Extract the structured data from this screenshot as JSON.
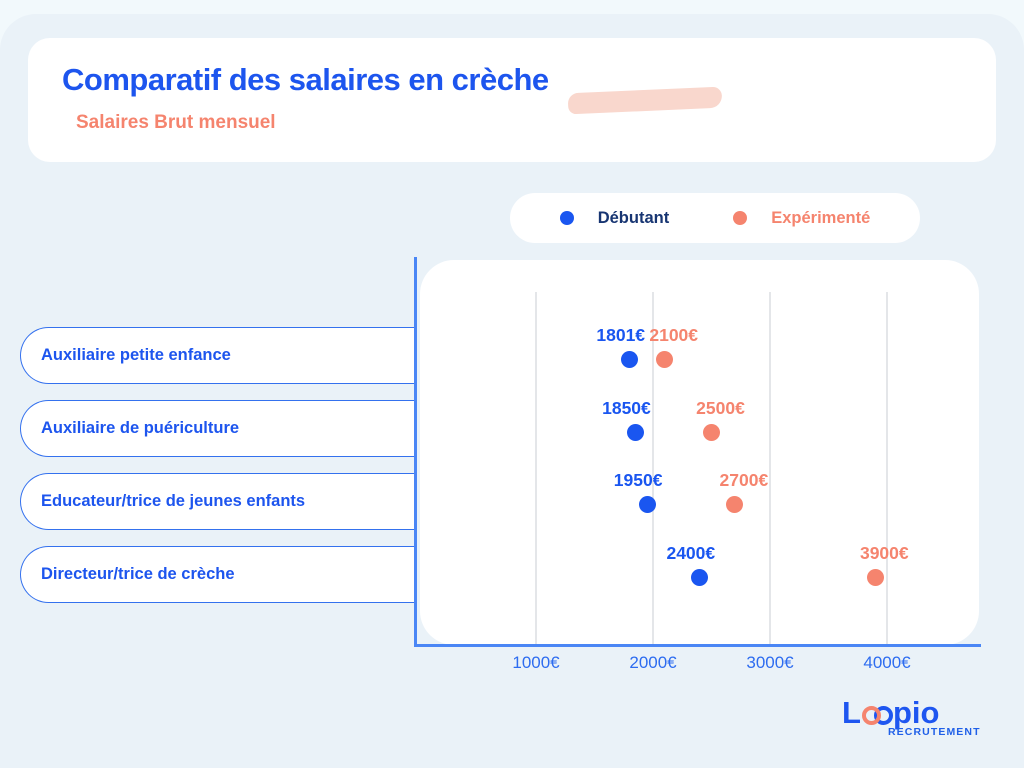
{
  "header": {
    "title": "Comparatif des salaires en crèche",
    "subtitle": "Salaires Brut mensuel"
  },
  "legend": {
    "items": [
      {
        "label": "Débutant",
        "dot_color": "#1a56f0",
        "text_color": "#173572"
      },
      {
        "label": "Expérimenté",
        "dot_color": "#f5846e",
        "text_color": "#f5846e"
      }
    ]
  },
  "chart_data": {
    "type": "scatter",
    "orientation": "horizontal",
    "title": "Comparatif des salaires en crèche",
    "subtitle": "Salaires Brut mensuel",
    "categories": [
      "Auxiliaire petite enfance",
      "Auxiliaire de puériculture",
      "Educateur/trice de jeunes enfants",
      "Directeur/trice de crèche"
    ],
    "series": [
      {
        "name": "Débutant",
        "color": "#1a56f0",
        "values": [
          1801,
          1850,
          1950,
          2400
        ],
        "labels": [
          "1801€",
          "1850€",
          "1950€",
          "2400€"
        ]
      },
      {
        "name": "Expérimenté",
        "color": "#f5846e",
        "values": [
          2100,
          2500,
          2700,
          3900
        ],
        "labels": [
          "2100€",
          "2500€",
          "2700€",
          "3900€"
        ]
      }
    ],
    "x_ticks": [
      {
        "value": 1000,
        "label": "1000€"
      },
      {
        "value": 2000,
        "label": "2000€"
      },
      {
        "value": 3000,
        "label": "3000€"
      },
      {
        "value": 4000,
        "label": "4000€"
      }
    ],
    "xlim": [
      0,
      4800
    ],
    "grid": "vertical",
    "legend_position": "top",
    "currency": "€"
  },
  "logo": {
    "part1": "L",
    "part2": "pio",
    "tagline": "RECRUTEMENT"
  },
  "colors": {
    "accent_blue": "#1d55ee",
    "accent_coral": "#f5846e",
    "axis_blue": "#4a86f5",
    "background": "#eaf2f8",
    "highlight_pink": "#f9d7cd"
  }
}
